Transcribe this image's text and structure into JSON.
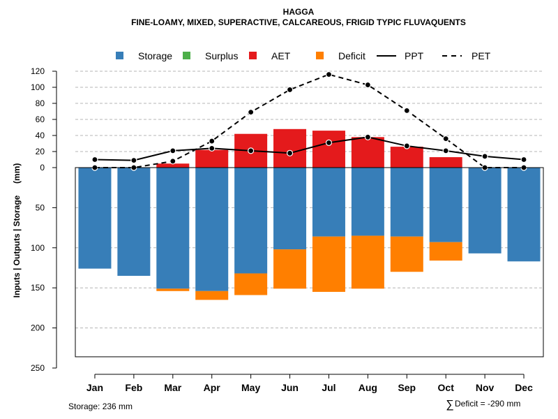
{
  "chart_data": {
    "type": "bar",
    "title": "HAGGA",
    "subtitle": "FINE-LOAMY, MIXED, SUPERACTIVE, CALCAREOUS, FRIGID TYPIC FLUVAQUENTS",
    "ylabel": "Inputs | Outputs | Storage     (mm)",
    "categories": [
      "Jan",
      "Feb",
      "Mar",
      "Apr",
      "May",
      "Jun",
      "Jul",
      "Aug",
      "Sep",
      "Oct",
      "Nov",
      "Dec"
    ],
    "upper_axis": {
      "ylim": [
        0,
        120
      ],
      "ticks": [
        "0",
        "20",
        "40",
        "60",
        "80",
        "100",
        "120"
      ]
    },
    "lower_axis": {
      "ylim": [
        0,
        250
      ],
      "ticks": [
        "50",
        "100",
        "150",
        "200",
        "250"
      ]
    },
    "series": [
      {
        "name": "Storage",
        "kind": "bar-below",
        "color": "#377EB8",
        "values": [
          126,
          135,
          151,
          154,
          132,
          102,
          86,
          85,
          86,
          93,
          107,
          117
        ]
      },
      {
        "name": "Surplus",
        "kind": "bar-above",
        "color": "#4DAF4A",
        "values": [
          0,
          0,
          0,
          0,
          0,
          0,
          0,
          0,
          0,
          0,
          0,
          0
        ]
      },
      {
        "name": "AET",
        "kind": "bar-above",
        "color": "#E41A1C",
        "values": [
          0,
          0,
          5,
          22,
          42,
          48,
          46,
          38,
          26,
          13,
          0,
          0
        ]
      },
      {
        "name": "Deficit",
        "kind": "bar-below-stacked",
        "color": "#FF7F00",
        "values": [
          0,
          0,
          3,
          11,
          27,
          49,
          69,
          66,
          44,
          23,
          0,
          0
        ]
      },
      {
        "name": "PPT",
        "kind": "line-solid",
        "color": "#000000",
        "values": [
          10,
          9,
          21,
          24,
          21,
          18,
          31,
          38,
          27,
          21,
          14,
          10
        ]
      },
      {
        "name": "PET",
        "kind": "line-dashed",
        "color": "#000000",
        "values": [
          0,
          0,
          8,
          33,
          69,
          97,
          116,
          103,
          71,
          36,
          0,
          0
        ]
      }
    ],
    "legend": [
      "Storage",
      "Surplus",
      "AET",
      "Deficit",
      "PPT",
      "PET"
    ],
    "legend_position": "top",
    "grid": true,
    "storage_capacity": 236,
    "annotations": {
      "storage": "Storage: 236 mm",
      "deficit_symbol": "∑",
      "deficit": "Deficit = -290 mm"
    }
  }
}
